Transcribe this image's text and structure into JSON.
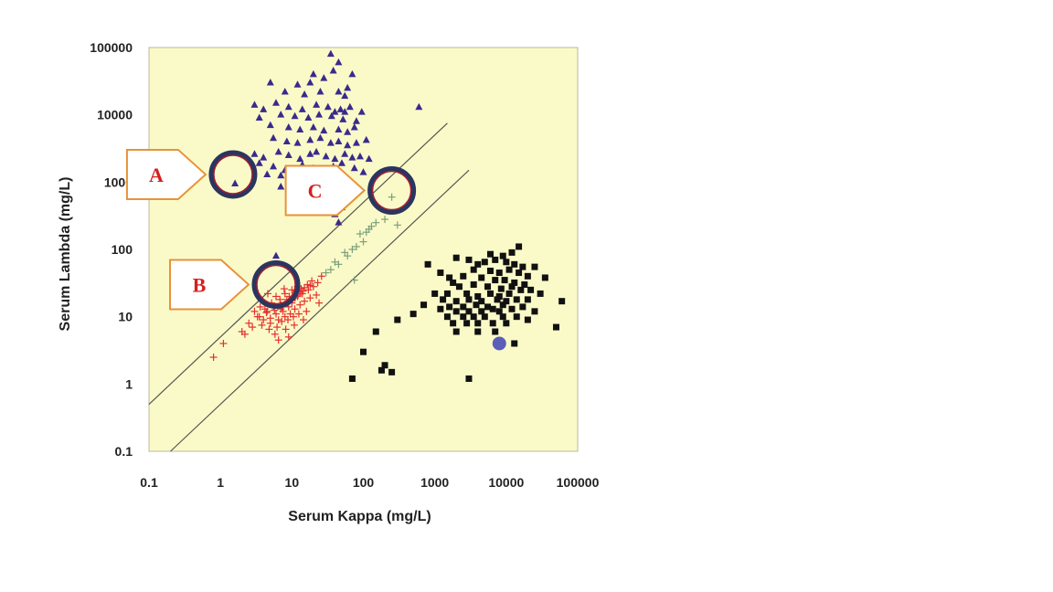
{
  "chart_data": {
    "type": "scatter",
    "title": "",
    "xlabel": "Serum Kappa (mg/L)",
    "ylabel": "Serum Lambda (mg/L)",
    "xscale": "log",
    "yscale": "log",
    "xlim": [
      0.1,
      100000
    ],
    "ylim": [
      0.1,
      100000
    ],
    "x_ticks": [
      0.1,
      1,
      10,
      100,
      1000,
      10000,
      100000
    ],
    "x_tick_labels": [
      "0.1",
      "1",
      "10",
      "100",
      "1000",
      "10000",
      "100000"
    ],
    "y_ticks": [
      0.1,
      1,
      10,
      100,
      1000,
      10000,
      100000
    ],
    "y_tick_labels": [
      "0.1",
      "1",
      "10",
      "100",
      "1000",
      "10000",
      "100000"
    ],
    "grid": false,
    "colors": {
      "plot_background": "#fafac8",
      "lambda_triangles": "#3a2a8c",
      "kappa_squares": "#111111",
      "normal_crosses": "#e53030",
      "ratio_crosses": "#7aa07a",
      "blue_dot": "#5b5fb8",
      "reference_lines": "#555555",
      "callout_border": "#e8923a",
      "callout_text": "#d42020",
      "circle_ring": "#2a3560",
      "circle_inner": "#a02030"
    },
    "reference_lines": [
      {
        "points": [
          [
            0.1,
            0.5
          ],
          [
            1500,
            7500
          ]
        ]
      },
      {
        "points": [
          [
            0.2,
            0.1
          ],
          [
            3000,
            1500
          ]
        ]
      }
    ],
    "series": [
      {
        "marker": "triangle",
        "points": [
          [
            35,
            80000
          ],
          [
            45,
            60000
          ],
          [
            20,
            40000
          ],
          [
            5,
            30000
          ],
          [
            12,
            28000
          ],
          [
            18,
            30000
          ],
          [
            28,
            35000
          ],
          [
            38,
            45000
          ],
          [
            8,
            22000
          ],
          [
            15,
            20000
          ],
          [
            25,
            22000
          ],
          [
            45,
            22000
          ],
          [
            55,
            19000
          ],
          [
            60,
            25000
          ],
          [
            70,
            40000
          ],
          [
            3,
            14000
          ],
          [
            4,
            12000
          ],
          [
            6,
            15000
          ],
          [
            9,
            13000
          ],
          [
            14,
            12000
          ],
          [
            22,
            14000
          ],
          [
            32,
            13000
          ],
          [
            40,
            11000
          ],
          [
            48,
            12000
          ],
          [
            55,
            11000
          ],
          [
            65,
            13000
          ],
          [
            95,
            11000
          ],
          [
            3.5,
            9000
          ],
          [
            7,
            10000
          ],
          [
            11,
            9500
          ],
          [
            17,
            9000
          ],
          [
            24,
            10000
          ],
          [
            36,
            9500
          ],
          [
            52,
            8500
          ],
          [
            80,
            8000
          ],
          [
            600,
            13000
          ],
          [
            5,
            7000
          ],
          [
            9,
            6500
          ],
          [
            13,
            6000
          ],
          [
            20,
            6500
          ],
          [
            28,
            5800
          ],
          [
            45,
            6000
          ],
          [
            60,
            5500
          ],
          [
            75,
            6500
          ],
          [
            5.5,
            4500
          ],
          [
            8.5,
            4000
          ],
          [
            12,
            3800
          ],
          [
            18,
            4200
          ],
          [
            25,
            4500
          ],
          [
            35,
            3800
          ],
          [
            45,
            4000
          ],
          [
            60,
            3500
          ],
          [
            80,
            3800
          ],
          [
            110,
            4200
          ],
          [
            3,
            2600
          ],
          [
            4,
            2300
          ],
          [
            6.5,
            2800
          ],
          [
            9,
            2500
          ],
          [
            13,
            2200
          ],
          [
            18,
            2600
          ],
          [
            22,
            2800
          ],
          [
            30,
            2400
          ],
          [
            40,
            2200
          ],
          [
            55,
            2600
          ],
          [
            70,
            2300
          ],
          [
            90,
            2400
          ],
          [
            120,
            2200
          ],
          [
            3.5,
            1900
          ],
          [
            5.5,
            1700
          ],
          [
            8,
            1500
          ],
          [
            14,
            1800
          ],
          [
            20,
            1600
          ],
          [
            25,
            1500
          ],
          [
            38,
            1700
          ],
          [
            50,
            1900
          ],
          [
            75,
            1600
          ],
          [
            100,
            1400
          ],
          [
            4.5,
            1300
          ],
          [
            7,
            1250
          ],
          [
            11,
            1200
          ],
          [
            25,
            1100
          ],
          [
            60,
            1100
          ],
          [
            1.6,
            950
          ],
          [
            7,
            850
          ],
          [
            12,
            780
          ],
          [
            20,
            800
          ],
          [
            30,
            750
          ],
          [
            45,
            800
          ],
          [
            70,
            850
          ],
          [
            25,
            500
          ],
          [
            35,
            450
          ],
          [
            50,
            420
          ],
          [
            15,
            420
          ],
          [
            30,
            380
          ],
          [
            40,
            330
          ],
          [
            45,
            250
          ],
          [
            6,
            80
          ]
        ]
      },
      {
        "marker": "square",
        "points": [
          [
            8000,
            4
          ],
          [
            12000,
            90
          ],
          [
            15000,
            110
          ],
          [
            6000,
            85
          ],
          [
            9000,
            80
          ],
          [
            2000,
            75
          ],
          [
            3000,
            70
          ],
          [
            4000,
            60
          ],
          [
            5000,
            65
          ],
          [
            7000,
            70
          ],
          [
            10000,
            65
          ],
          [
            13000,
            60
          ],
          [
            17000,
            55
          ],
          [
            25000,
            55
          ],
          [
            3500,
            50
          ],
          [
            6000,
            48
          ],
          [
            8000,
            45
          ],
          [
            11000,
            50
          ],
          [
            15000,
            45
          ],
          [
            20000,
            40
          ],
          [
            35000,
            38
          ],
          [
            2500,
            40
          ],
          [
            4500,
            38
          ],
          [
            7000,
            35
          ],
          [
            9500,
            35
          ],
          [
            13000,
            32
          ],
          [
            18000,
            30
          ],
          [
            800,
            60
          ],
          [
            1200,
            45
          ],
          [
            1600,
            38
          ],
          [
            1800,
            32
          ],
          [
            2200,
            28
          ],
          [
            3500,
            30
          ],
          [
            5500,
            28
          ],
          [
            8500,
            26
          ],
          [
            12000,
            28
          ],
          [
            16000,
            25
          ],
          [
            22000,
            25
          ],
          [
            1000,
            22
          ],
          [
            1500,
            22
          ],
          [
            2800,
            22
          ],
          [
            4000,
            20
          ],
          [
            6000,
            22
          ],
          [
            8000,
            20
          ],
          [
            11000,
            22
          ],
          [
            30000,
            22
          ],
          [
            1300,
            18
          ],
          [
            2000,
            17
          ],
          [
            3000,
            18
          ],
          [
            4500,
            17
          ],
          [
            7500,
            18
          ],
          [
            10000,
            17
          ],
          [
            14000,
            18
          ],
          [
            20000,
            18
          ],
          [
            60000,
            17
          ],
          [
            700,
            15
          ],
          [
            1600,
            14
          ],
          [
            2500,
            14
          ],
          [
            3800,
            15
          ],
          [
            5500,
            14
          ],
          [
            9000,
            15
          ],
          [
            12000,
            13
          ],
          [
            17000,
            14
          ],
          [
            1200,
            13
          ],
          [
            2000,
            12
          ],
          [
            3000,
            12
          ],
          [
            4500,
            12
          ],
          [
            6500,
            13
          ],
          [
            8000,
            12
          ],
          [
            25000,
            12
          ],
          [
            500,
            11
          ],
          [
            1500,
            10
          ],
          [
            2500,
            10
          ],
          [
            3500,
            10
          ],
          [
            5000,
            10
          ],
          [
            9000,
            10
          ],
          [
            14000,
            10
          ],
          [
            20000,
            9
          ],
          [
            300,
            9
          ],
          [
            1800,
            8
          ],
          [
            2800,
            8
          ],
          [
            4000,
            8
          ],
          [
            6500,
            8
          ],
          [
            10000,
            8
          ],
          [
            50000,
            7
          ],
          [
            150,
            6
          ],
          [
            2000,
            6
          ],
          [
            4000,
            6
          ],
          [
            7000,
            6
          ],
          [
            13000,
            4
          ],
          [
            100,
            3
          ],
          [
            200,
            1.9
          ],
          [
            250,
            1.5
          ],
          [
            3000,
            1.2
          ],
          [
            70,
            1.2
          ],
          [
            180,
            1.6
          ]
        ]
      },
      {
        "marker": "cross",
        "points": [
          [
            0.8,
            2.5
          ],
          [
            1.1,
            4
          ],
          [
            2,
            6
          ],
          [
            2.8,
            7
          ],
          [
            3.5,
            10
          ],
          [
            4,
            9
          ],
          [
            4.5,
            12
          ],
          [
            5,
            8
          ],
          [
            5.5,
            14
          ],
          [
            6,
            11
          ],
          [
            6.5,
            9
          ],
          [
            7,
            15
          ],
          [
            7.5,
            12
          ],
          [
            8,
            10
          ],
          [
            8.5,
            18
          ],
          [
            9,
            14
          ],
          [
            9.5,
            11
          ],
          [
            10,
            16
          ],
          [
            11,
            13
          ],
          [
            12,
            20
          ],
          [
            13,
            15
          ],
          [
            14,
            22
          ],
          [
            15,
            17
          ],
          [
            16,
            12
          ],
          [
            17,
            25
          ],
          [
            18,
            19
          ],
          [
            20,
            28
          ],
          [
            22,
            21
          ],
          [
            24,
            16
          ],
          [
            4.8,
            6.5
          ],
          [
            6.2,
            7
          ],
          [
            7.2,
            8.5
          ],
          [
            8.8,
            9
          ],
          [
            10.5,
            10
          ],
          [
            12.5,
            11
          ],
          [
            3.8,
            7.5
          ],
          [
            5.2,
            16
          ],
          [
            6.8,
            18
          ],
          [
            9.2,
            20
          ],
          [
            11.5,
            24
          ],
          [
            13.5,
            26
          ],
          [
            16.5,
            30
          ],
          [
            19,
            34
          ],
          [
            23,
            32
          ],
          [
            26,
            40
          ],
          [
            5.8,
            5.5
          ],
          [
            8.2,
            6.5
          ],
          [
            10.8,
            7.5
          ],
          [
            14.5,
            9
          ],
          [
            4.2,
            13
          ],
          [
            6,
            20
          ],
          [
            8,
            22
          ],
          [
            10,
            25
          ],
          [
            12,
            28
          ],
          [
            3,
            12
          ],
          [
            5,
            9.5
          ],
          [
            7,
            13
          ],
          [
            9,
            17
          ],
          [
            11,
            19
          ],
          [
            13,
            23
          ],
          [
            15,
            27
          ],
          [
            18,
            29
          ],
          [
            2.5,
            8
          ],
          [
            3.3,
            10
          ],
          [
            4.4,
            11.5
          ],
          [
            5.7,
            12.5
          ],
          [
            7.3,
            14
          ],
          [
            8.7,
            16
          ],
          [
            10.2,
            18
          ],
          [
            12.2,
            21
          ],
          [
            14.3,
            24
          ],
          [
            6.5,
            4.5
          ],
          [
            9,
            5
          ],
          [
            7.8,
            26
          ],
          [
            4.6,
            22
          ],
          [
            2.2,
            5.5
          ],
          [
            3.6,
            14
          ]
        ]
      },
      {
        "marker": "cross",
        "points": [
          [
            250,
            600
          ],
          [
            200,
            280
          ],
          [
            300,
            230
          ],
          [
            150,
            250
          ],
          [
            120,
            200
          ],
          [
            90,
            170
          ],
          [
            100,
            130
          ],
          [
            70,
            100
          ],
          [
            55,
            90
          ],
          [
            60,
            80
          ],
          [
            45,
            60
          ],
          [
            40,
            65
          ],
          [
            35,
            50
          ],
          [
            75,
            35
          ],
          [
            30,
            45
          ],
          [
            80,
            110
          ],
          [
            110,
            180
          ],
          [
            130,
            220
          ]
        ]
      },
      {
        "marker": "circle",
        "points": [
          [
            8000,
            4
          ]
        ]
      }
    ],
    "callouts": [
      {
        "label": "A",
        "target": [
          1.5,
          1300
        ]
      },
      {
        "label": "B",
        "target": [
          6,
          30
        ]
      },
      {
        "label": "C",
        "target": [
          250,
          750
        ]
      }
    ]
  }
}
